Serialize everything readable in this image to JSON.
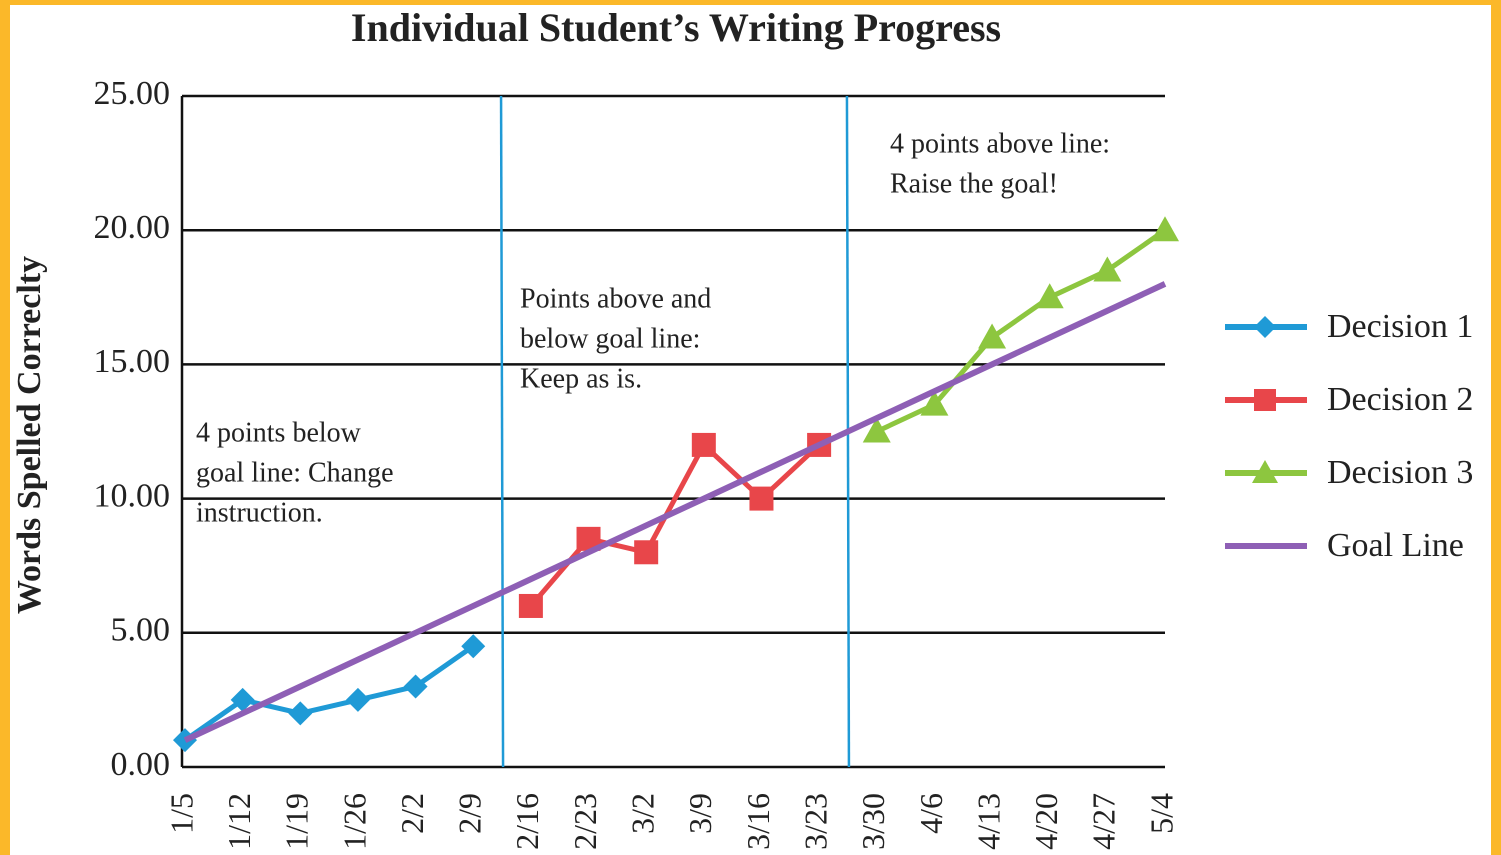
{
  "chart_data": {
    "type": "line",
    "title": "Individual Student’s Writing Progress",
    "y_label": "Words Spelled Correclty",
    "categories": [
      "1/5",
      "1/12",
      "1/19",
      "1/26",
      "2/2",
      "2/9",
      "2/16",
      "2/23",
      "3/2",
      "3/9",
      "3/16",
      "3/23",
      "3/30",
      "4/6",
      "4/13",
      "4/20",
      "4/27",
      "5/4"
    ],
    "series": [
      {
        "name": "Decision 1",
        "color": "#1f9ad6",
        "marker": "diamond",
        "values": [
          1,
          2.5,
          2,
          2.5,
          3,
          4.5,
          null,
          null,
          null,
          null,
          null,
          null,
          null,
          null,
          null,
          null,
          null,
          null
        ]
      },
      {
        "name": "Decision 2",
        "color": "#e8464a",
        "marker": "square",
        "values": [
          null,
          null,
          null,
          null,
          null,
          null,
          6,
          8.5,
          8,
          12,
          10,
          12,
          null,
          null,
          null,
          null,
          null,
          null
        ]
      },
      {
        "name": "Decision 3",
        "color": "#8dc63f",
        "marker": "triangle",
        "values": [
          null,
          null,
          null,
          null,
          null,
          null,
          null,
          null,
          null,
          null,
          null,
          null,
          12.5,
          13.5,
          16,
          17.5,
          18.5,
          20
        ]
      },
      {
        "name": "Goal Line",
        "color": "#8e5fb5",
        "marker": "none",
        "values": [
          1,
          2,
          3,
          4,
          5,
          6,
          7,
          8,
          9,
          10,
          11,
          12,
          13,
          14,
          15,
          16,
          17,
          18
        ]
      }
    ],
    "ylim": [
      0,
      25
    ],
    "yticks": [
      {
        "value": 0,
        "label": "0.00"
      },
      {
        "value": 5,
        "label": "5.00"
      },
      {
        "value": 10,
        "label": "10.00"
      },
      {
        "value": 15,
        "label": "15.00"
      },
      {
        "value": 20,
        "label": "20.00"
      },
      {
        "value": 25,
        "label": "25.00"
      }
    ],
    "grid": true,
    "legend": "right",
    "annotations": [
      [
        "4 points below",
        "goal line: Change",
        "instruction."
      ],
      [
        "Points above and",
        "below goal line:",
        "Keep as is."
      ],
      [
        "4 points above line:",
        "Raise the goal!"
      ]
    ]
  }
}
